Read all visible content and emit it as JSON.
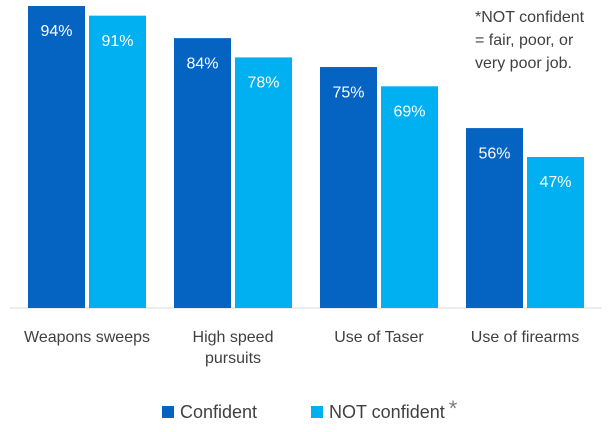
{
  "chart_data": {
    "type": "bar",
    "categories": [
      "Weapons sweeps",
      "High speed pursuits",
      "Use of Taser",
      "Use of firearms"
    ],
    "series": [
      {
        "name": "Confident",
        "color": "#0563c1",
        "values": [
          94,
          84,
          75,
          56
        ],
        "value_labels": [
          "94%",
          "84%",
          "75%",
          "56%"
        ]
      },
      {
        "name": "NOT confident",
        "color": "#00b0f0",
        "values": [
          91,
          78,
          69,
          47
        ],
        "value_labels": [
          "91%",
          "78%",
          "69%",
          "47%"
        ]
      }
    ],
    "legend_note": "*",
    "annotation": [
      "*NOT confident",
      "= fair, poor, or",
      "very poor job."
    ]
  }
}
